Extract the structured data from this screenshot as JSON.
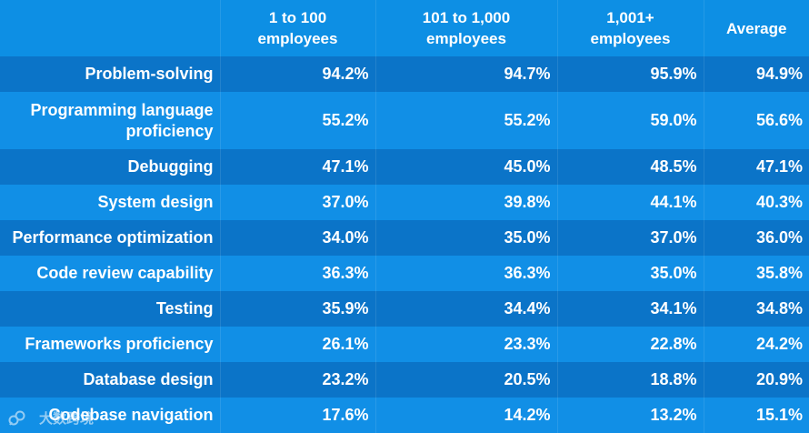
{
  "chart_data": {
    "type": "table",
    "columns": [
      "",
      "1 to 100 employees",
      "101 to 1,000 employees",
      "1,001+ employees",
      "Average"
    ],
    "header_lines": [
      [
        ""
      ],
      [
        "1 to 100",
        "employees"
      ],
      [
        "101 to 1,000",
        "employees"
      ],
      [
        "1,001+",
        "employees"
      ],
      [
        "Average"
      ]
    ],
    "rows": [
      {
        "label_lines": [
          "Problem-solving"
        ],
        "values": [
          "94.2%",
          "94.7%",
          "95.9%",
          "94.9%"
        ]
      },
      {
        "label_lines": [
          "Programming language",
          "proficiency"
        ],
        "values": [
          "55.2%",
          "55.2%",
          "59.0%",
          "56.6%"
        ]
      },
      {
        "label_lines": [
          "Debugging"
        ],
        "values": [
          "47.1%",
          "45.0%",
          "48.5%",
          "47.1%"
        ]
      },
      {
        "label_lines": [
          "System design"
        ],
        "values": [
          "37.0%",
          "39.8%",
          "44.1%",
          "40.3%"
        ]
      },
      {
        "label_lines": [
          "Performance optimization"
        ],
        "values": [
          "34.0%",
          "35.0%",
          "37.0%",
          "36.0%"
        ]
      },
      {
        "label_lines": [
          "Code review capability"
        ],
        "values": [
          "36.3%",
          "36.3%",
          "35.0%",
          "35.8%"
        ]
      },
      {
        "label_lines": [
          "Testing"
        ],
        "values": [
          "35.9%",
          "34.4%",
          "34.1%",
          "34.8%"
        ]
      },
      {
        "label_lines": [
          "Frameworks proficiency"
        ],
        "values": [
          "26.1%",
          "23.3%",
          "22.8%",
          "24.2%"
        ]
      },
      {
        "label_lines": [
          "Database design"
        ],
        "values": [
          "23.2%",
          "20.5%",
          "18.8%",
          "20.9%"
        ]
      },
      {
        "label_lines": [
          "Codebase navigation"
        ],
        "values": [
          "17.6%",
          "14.2%",
          "13.2%",
          "15.1%"
        ]
      }
    ]
  },
  "watermark": {
    "text": "大数跨境",
    "icon": "wechat-logo-icon"
  },
  "colors": {
    "header_bg": "#0d8fe4",
    "row_dark": "#0b74c8",
    "row_light": "#118fe6",
    "text": "#ffffff"
  }
}
